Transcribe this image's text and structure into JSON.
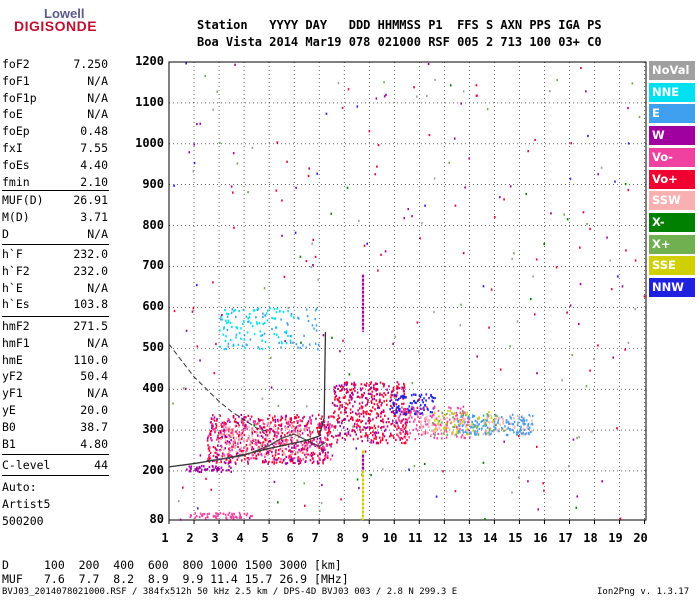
{
  "logo": {
    "line1": "Lowell",
    "line2": "DIGISONDE"
  },
  "header": {
    "row1": "Station   YYYY DAY   DDD HHMMSS P1  FFS S AXN PPS IGA PS",
    "row2": "Boa Vista 2014 Mar19 078 021000 RSF 005 2 713 100 03+ C0"
  },
  "params_group1": [
    {
      "name": "foF2",
      "value": "7.250"
    },
    {
      "name": "foF1",
      "value": "N/A"
    },
    {
      "name": "foF1p",
      "value": "N/A"
    },
    {
      "name": "foE",
      "value": "N/A"
    },
    {
      "name": "foEp",
      "value": "0.48"
    },
    {
      "name": "fxI",
      "value": "7.55"
    },
    {
      "name": "foEs",
      "value": "4.40"
    },
    {
      "name": "fmin",
      "value": "2.10"
    }
  ],
  "params_group2": [
    {
      "name": "MUF(D)",
      "value": "26.91"
    },
    {
      "name": "M(D)",
      "value": "3.71"
    },
    {
      "name": "D",
      "value": "N/A"
    }
  ],
  "params_group3": [
    {
      "name": "h`F",
      "value": "232.0"
    },
    {
      "name": "h`F2",
      "value": "232.0"
    },
    {
      "name": "h`E",
      "value": "N/A"
    },
    {
      "name": "h`Es",
      "value": "103.8"
    }
  ],
  "params_group4": [
    {
      "name": "hmF2",
      "value": "271.5"
    },
    {
      "name": "hmF1",
      "value": "N/A"
    },
    {
      "name": "hmE",
      "value": "110.0"
    },
    {
      "name": "yF2",
      "value": "50.4"
    },
    {
      "name": "yF1",
      "value": "N/A"
    },
    {
      "name": "yE",
      "value": "20.0"
    },
    {
      "name": "B0",
      "value": "38.7"
    },
    {
      "name": "B1",
      "value": "4.80"
    }
  ],
  "clevel": {
    "name": "C-level",
    "value": "44"
  },
  "auto": {
    "line1": "Auto:",
    "line2": "Artist5",
    "line3": "500200"
  },
  "legend": [
    {
      "label": "NoVal",
      "color": "#a0a0a0"
    },
    {
      "label": "NNE",
      "color": "#00e0f0"
    },
    {
      "label": "E",
      "color": "#40a0f0"
    },
    {
      "label": "W",
      "color": "#a000a0"
    },
    {
      "label": "Vo-",
      "color": "#f040a0"
    },
    {
      "label": "Vo+",
      "color": "#f00030"
    },
    {
      "label": "SSW",
      "color": "#f8b0b0"
    },
    {
      "label": "X-",
      "color": "#008000"
    },
    {
      "label": "X+",
      "color": "#70b050"
    },
    {
      "label": "SSE",
      "color": "#d0d000"
    },
    {
      "label": "NNW",
      "color": "#2020e0"
    }
  ],
  "chart_data": {
    "type": "scatter",
    "xlim": [
      1,
      20
    ],
    "ylim": [
      80,
      1200
    ],
    "x_ticks": [
      "1",
      "2",
      "3",
      "4",
      "5",
      "6",
      "7",
      "8",
      "9",
      "10",
      "11",
      "12",
      "13",
      "14",
      "15",
      "16",
      "17",
      "18",
      "19",
      "20"
    ],
    "y_ticks": [
      "1200",
      "1100",
      "1000",
      "900",
      "800",
      "700",
      "600",
      "500",
      "400",
      "300",
      "200",
      "80"
    ],
    "grid": true,
    "legend_position": "right",
    "profile_curve": {
      "x": [
        1.0,
        2.0,
        3.0,
        4.0,
        5.0,
        6.0,
        6.5,
        7.0,
        7.2,
        7.25
      ],
      "y": [
        210,
        218,
        228,
        240,
        255,
        268,
        275,
        285,
        330,
        540
      ]
    },
    "trace_curve": {
      "x": [
        2.5,
        3.0,
        4.0,
        5.0,
        5.5,
        6.0,
        6.5,
        7.0,
        7.25
      ],
      "y": [
        225,
        228,
        238,
        262,
        280,
        290,
        275,
        260,
        270
      ]
    },
    "dashed_curve": {
      "x": [
        1.0,
        1.5,
        2.0,
        2.5,
        3.0,
        3.5,
        4.0,
        4.5,
        5.0
      ],
      "y": [
        510,
        470,
        430,
        400,
        370,
        345,
        325,
        305,
        295
      ]
    },
    "clusters": [
      {
        "x": [
          1.8,
          4.3
        ],
        "y": [
          85,
          100
        ],
        "color": "#f040a0",
        "n": 60
      },
      {
        "x": [
          1.6,
          3.5
        ],
        "y": [
          200,
          215
        ],
        "color": "#a000a0",
        "n": 50
      },
      {
        "x": [
          2.5,
          7.5
        ],
        "y": [
          220,
          340
        ],
        "color": "#f00030",
        "n": 380
      },
      {
        "x": [
          2.5,
          7.5
        ],
        "y": [
          220,
          340
        ],
        "color": "#a000a0",
        "n": 220
      },
      {
        "x": [
          2.5,
          7.5
        ],
        "y": [
          230,
          330
        ],
        "color": "#f040a0",
        "n": 200
      },
      {
        "x": [
          3.0,
          6.5
        ],
        "y": [
          240,
          320
        ],
        "color": "#f8b0b0",
        "n": 120
      },
      {
        "x": [
          3.0,
          6.0
        ],
        "y": [
          500,
          600
        ],
        "color": "#00e0f0",
        "n": 90
      },
      {
        "x": [
          3.0,
          7.0
        ],
        "y": [
          500,
          600
        ],
        "color": "#40a0f0",
        "n": 60
      },
      {
        "x": [
          7.5,
          10.5
        ],
        "y": [
          270,
          420
        ],
        "color": "#f00030",
        "n": 300
      },
      {
        "x": [
          7.5,
          10.5
        ],
        "y": [
          270,
          420
        ],
        "color": "#a000a0",
        "n": 150
      },
      {
        "x": [
          9.8,
          11.6
        ],
        "y": [
          340,
          390
        ],
        "color": "#2020e0",
        "n": 90
      },
      {
        "x": [
          10.0,
          13.0
        ],
        "y": [
          280,
          360
        ],
        "color": "#f040a0",
        "n": 150
      },
      {
        "x": [
          11.0,
          15.5
        ],
        "y": [
          290,
          340
        ],
        "color": "#f8b0b0",
        "n": 150
      },
      {
        "x": [
          12.5,
          15.5
        ],
        "y": [
          290,
          340
        ],
        "color": "#40a0f0",
        "n": 130
      },
      {
        "x": [
          11.5,
          14.5
        ],
        "y": [
          290,
          350
        ],
        "color": "#70b050",
        "n": 40
      },
      {
        "x": [
          11.5,
          14.0
        ],
        "y": [
          290,
          350
        ],
        "color": "#d0d000",
        "n": 40
      },
      {
        "x": [
          1.0,
          20.0
        ],
        "y": [
          80,
          1200
        ],
        "color": "#f00030",
        "n": 80
      },
      {
        "x": [
          1.0,
          20.0
        ],
        "y": [
          80,
          1200
        ],
        "color": "#a000a0",
        "n": 60
      },
      {
        "x": [
          1.0,
          20.0
        ],
        "y": [
          80,
          1200
        ],
        "color": "#70b050",
        "n": 30
      },
      {
        "x": [
          1.0,
          20.0
        ],
        "y": [
          80,
          1200
        ],
        "color": "#a0a0a0",
        "n": 40
      },
      {
        "x": [
          1.0,
          20.0
        ],
        "y": [
          80,
          1200
        ],
        "color": "#2020e0",
        "n": 20
      },
      {
        "x": [
          1.0,
          20.0
        ],
        "y": [
          80,
          1200
        ],
        "color": "#008000",
        "n": 20
      }
    ],
    "vertical_streaks": [
      {
        "x": 8.75,
        "y": [
          540,
          680
        ],
        "color": "#a000a0"
      },
      {
        "x": 8.75,
        "y": [
          80,
          250
        ],
        "color": "#d0d000"
      },
      {
        "x": 8.75,
        "y": [
          200,
          240
        ],
        "color": "#a000a0"
      }
    ]
  },
  "bottom": {
    "row1_label": "D",
    "row1_values": "100  200  400  600  800 1000 1500 3000 [km]",
    "row2_label": "MUF",
    "row2_values": "7.6  7.7  8.2  8.9  9.9 11.4 15.7 26.9 [MHz]"
  },
  "footer": {
    "left": "BVJ03_2014078021000.RSF / 384fx512h 50 kHz 2.5 km / DPS-4D BVJ03 003 / 2.8 N 299.3 E",
    "right": "Ion2Png v. 1.3.17"
  }
}
